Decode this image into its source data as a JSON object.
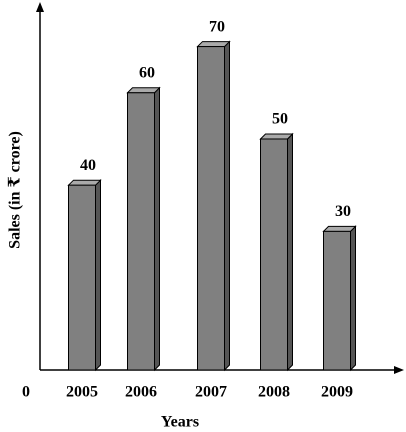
{
  "chart_data": {
    "type": "bar",
    "xlabel": "Years",
    "ylabel": "Sales (in ₹ crore)",
    "categories": [
      "2005",
      "2006",
      "2007",
      "2008",
      "2009"
    ],
    "values": [
      40,
      60,
      70,
      50,
      30
    ],
    "color": "#808080",
    "ylim": [
      0,
      79
    ],
    "yticks": [
      0
    ]
  }
}
